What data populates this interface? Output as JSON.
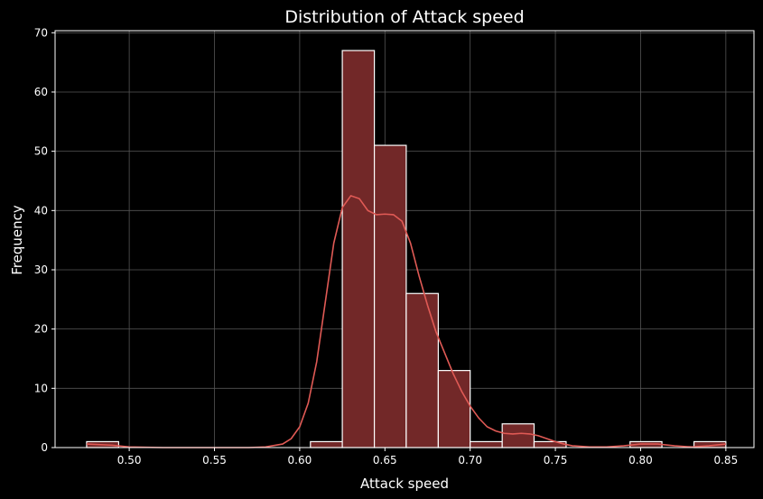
{
  "chart_data": {
    "type": "bar",
    "title": "Distribution of Attack speed",
    "xlabel": "Attack speed",
    "ylabel": "Frequency",
    "xlim": [
      0.4565,
      0.8665
    ],
    "ylim": [
      0,
      70.35
    ],
    "xticks": [
      0.5,
      0.55,
      0.6,
      0.65,
      0.7,
      0.75,
      0.8,
      0.85
    ],
    "xtick_labels": [
      "0.50",
      "0.55",
      "0.60",
      "0.65",
      "0.70",
      "0.75",
      "0.80",
      "0.85"
    ],
    "yticks": [
      0,
      10,
      20,
      30,
      40,
      50,
      60,
      70
    ],
    "ytick_labels": [
      "0",
      "10",
      "20",
      "30",
      "40",
      "50",
      "60",
      "70"
    ],
    "grid": true,
    "bins": [
      {
        "x0": 0.475,
        "x1": 0.4938,
        "count": 1
      },
      {
        "x0": 0.4938,
        "x1": 0.5125,
        "count": 0
      },
      {
        "x0": 0.5125,
        "x1": 0.5313,
        "count": 0
      },
      {
        "x0": 0.5313,
        "x1": 0.55,
        "count": 0
      },
      {
        "x0": 0.55,
        "x1": 0.5688,
        "count": 0
      },
      {
        "x0": 0.5688,
        "x1": 0.5875,
        "count": 0
      },
      {
        "x0": 0.5875,
        "x1": 0.6063,
        "count": 0
      },
      {
        "x0": 0.6063,
        "x1": 0.625,
        "count": 1
      },
      {
        "x0": 0.625,
        "x1": 0.6438,
        "count": 67
      },
      {
        "x0": 0.6438,
        "x1": 0.6625,
        "count": 51
      },
      {
        "x0": 0.6625,
        "x1": 0.6813,
        "count": 26
      },
      {
        "x0": 0.6813,
        "x1": 0.7,
        "count": 13
      },
      {
        "x0": 0.7,
        "x1": 0.7188,
        "count": 1
      },
      {
        "x0": 0.7188,
        "x1": 0.7375,
        "count": 4
      },
      {
        "x0": 0.7375,
        "x1": 0.7563,
        "count": 1
      },
      {
        "x0": 0.7563,
        "x1": 0.775,
        "count": 0
      },
      {
        "x0": 0.775,
        "x1": 0.7938,
        "count": 0
      },
      {
        "x0": 0.7938,
        "x1": 0.8125,
        "count": 1
      },
      {
        "x0": 0.8125,
        "x1": 0.8313,
        "count": 0
      },
      {
        "x0": 0.8313,
        "x1": 0.85,
        "count": 1
      }
    ],
    "kde": {
      "x": [
        0.475,
        0.49,
        0.5,
        0.52,
        0.55,
        0.57,
        0.58,
        0.59,
        0.595,
        0.6,
        0.605,
        0.61,
        0.615,
        0.62,
        0.625,
        0.63,
        0.635,
        0.64,
        0.645,
        0.65,
        0.655,
        0.66,
        0.665,
        0.67,
        0.675,
        0.68,
        0.685,
        0.69,
        0.695,
        0.7,
        0.705,
        0.71,
        0.715,
        0.72,
        0.725,
        0.73,
        0.735,
        0.74,
        0.745,
        0.75,
        0.755,
        0.76,
        0.77,
        0.78,
        0.79,
        0.8,
        0.81,
        0.82,
        0.83,
        0.84,
        0.85
      ],
      "y": [
        0.6,
        0.4,
        0.1,
        0.0,
        0.0,
        0.0,
        0.1,
        0.6,
        1.5,
        3.5,
        7.5,
        14.5,
        24.5,
        34.5,
        40.5,
        42.5,
        42.0,
        40.0,
        39.3,
        39.4,
        39.3,
        38.2,
        34.5,
        29.0,
        24.0,
        19.5,
        16.0,
        12.5,
        9.5,
        7.0,
        5.0,
        3.5,
        2.8,
        2.4,
        2.3,
        2.4,
        2.3,
        2.0,
        1.5,
        1.0,
        0.6,
        0.3,
        0.1,
        0.1,
        0.3,
        0.6,
        0.6,
        0.3,
        0.1,
        0.3,
        0.6
      ]
    },
    "colors": {
      "bar_fill": "#722828",
      "bar_edge": "#ffffff",
      "kde_line": "#e05a55",
      "grid": "#555555",
      "axis": "#ffffff",
      "background": "#000000"
    }
  }
}
